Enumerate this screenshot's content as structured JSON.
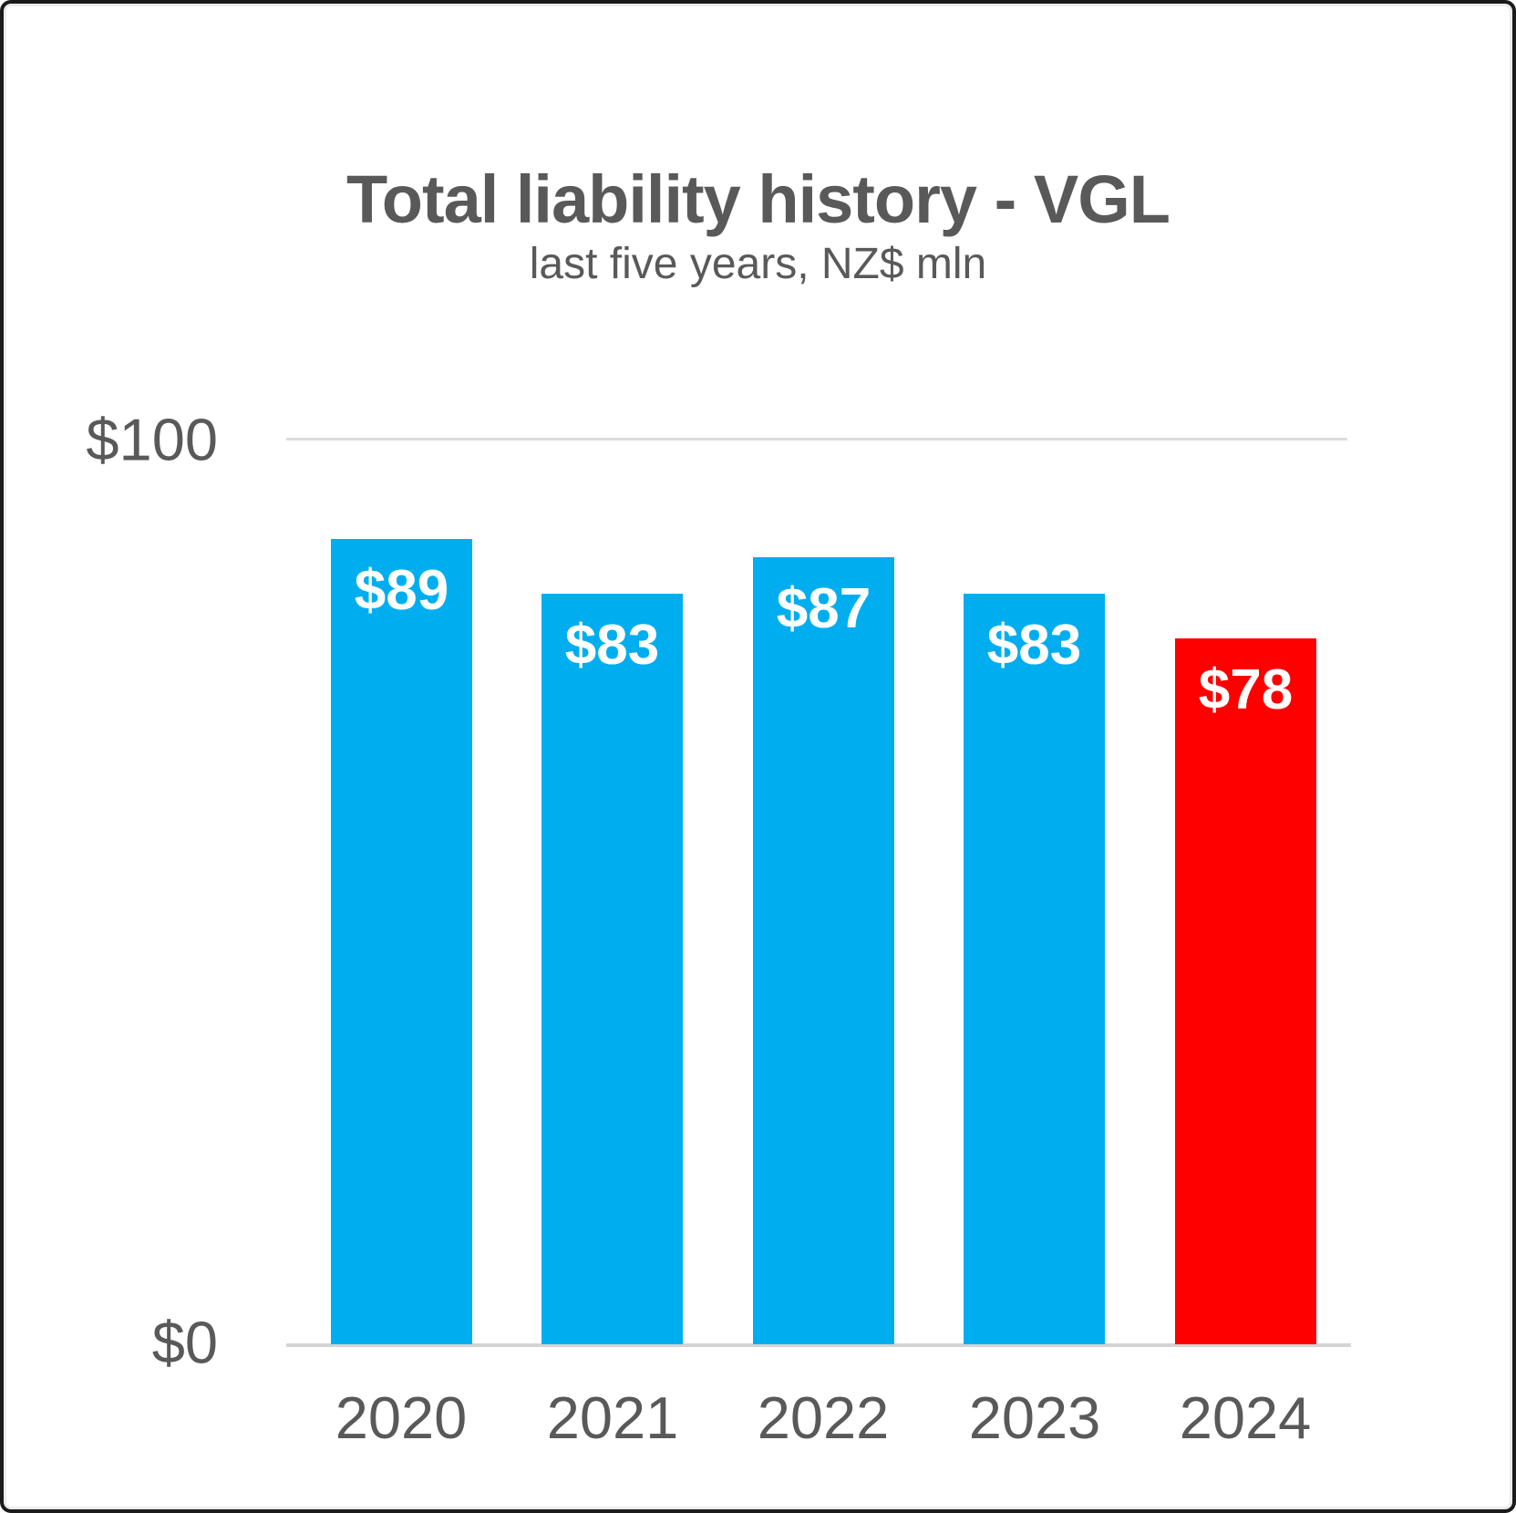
{
  "chart_data": {
    "type": "bar",
    "title": "Total liability history - VGL",
    "subtitle": "last five years, NZ$ mln",
    "categories": [
      "2020",
      "2021",
      "2022",
      "2023",
      "2024"
    ],
    "values": [
      89,
      83,
      87,
      83,
      78
    ],
    "data_labels": [
      "$89",
      "$83",
      "$87",
      "$83",
      "$78"
    ],
    "bar_colors": [
      "#00AEEF",
      "#00AEEF",
      "#00AEEF",
      "#00AEEF",
      "#FE0000"
    ],
    "ylim": [
      0,
      100
    ],
    "yticks": [
      {
        "value": 100,
        "label": "$100"
      },
      {
        "value": 0,
        "label": "$0"
      }
    ],
    "xlabel": "",
    "ylabel": "",
    "grid": "horizontal gridline at y=100 and baseline at y=0 only",
    "legend": "none"
  },
  "colors": {
    "title_text": "#595959",
    "axis_text": "#595959",
    "bar_label_text": "#FFFFFF",
    "bar_default": "#00AEEF",
    "bar_highlight": "#FE0000",
    "gridline": "#DCDCDC",
    "axis_line": "#D4D4D4",
    "frame_border": "#1B1B1B",
    "background": "#FFFFFF"
  }
}
